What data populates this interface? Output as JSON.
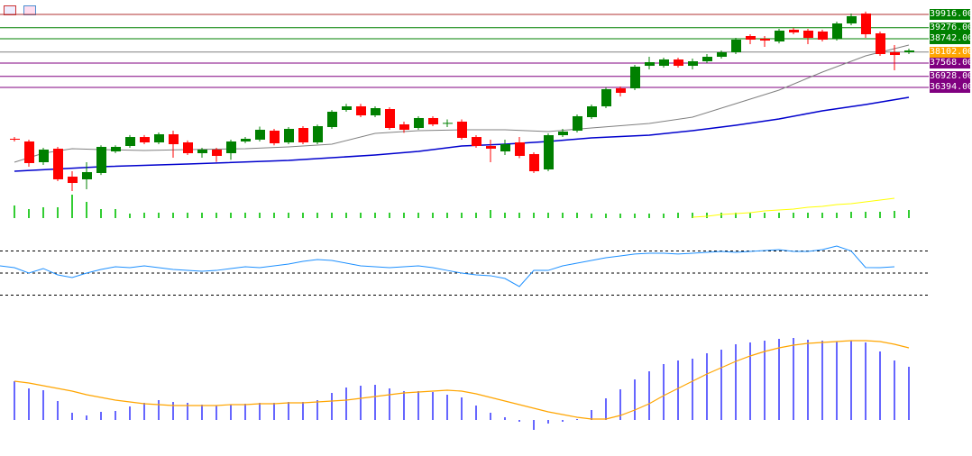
{
  "toolbar": {
    "icons": [
      "indicator-list-icon",
      "template-icon"
    ]
  },
  "price_levels": [
    {
      "label": "39916.00",
      "color": "#008000",
      "line": "#b03030"
    },
    {
      "label": "39276.00",
      "color": "#008000",
      "line": "#008000"
    },
    {
      "label": "38742.00",
      "color": "#008000",
      "line": "#008000"
    },
    {
      "label": "38102.00",
      "color": "#ffa500",
      "line": "#808080"
    },
    {
      "label": "37568.00",
      "color": "#800080",
      "line": "#800080"
    },
    {
      "label": "36928.00",
      "color": "#800080",
      "line": "#800080"
    },
    {
      "label": "36394.00",
      "color": "#800080",
      "line": "#800080"
    }
  ],
  "chart_data": [
    {
      "type": "candlestick",
      "title": "",
      "colors": {
        "up": "#008000",
        "down": "#ff0000",
        "ma_fast": "#808080",
        "ma_slow": "#0000cd"
      },
      "candles": [
        [
          33913,
          34000,
          33780,
          33870
        ],
        [
          33783,
          33870,
          32565,
          32739
        ],
        [
          32782,
          33480,
          32650,
          33391
        ],
        [
          33434,
          33520,
          31870,
          31956
        ],
        [
          32086,
          32347,
          31390,
          31781
        ],
        [
          31956,
          32782,
          31477,
          32304
        ],
        [
          32260,
          33600,
          32170,
          33522
        ],
        [
          33304,
          33600,
          33220,
          33522
        ],
        [
          33565,
          34090,
          33480,
          33999
        ],
        [
          33999,
          34090,
          33650,
          33739
        ],
        [
          33739,
          34220,
          33650,
          34131
        ],
        [
          34131,
          34304,
          32999,
          33652
        ],
        [
          33739,
          33830,
          33130,
          33217
        ],
        [
          33217,
          33480,
          33000,
          33391
        ],
        [
          33391,
          33480,
          32800,
          33087
        ],
        [
          33217,
          33870,
          32900,
          33783
        ],
        [
          33783,
          34000,
          33700,
          33913
        ],
        [
          33870,
          34500,
          33780,
          34348
        ],
        [
          34304,
          34391,
          33600,
          33696
        ],
        [
          33739,
          34478,
          33650,
          34391
        ],
        [
          34435,
          34522,
          33650,
          33739
        ],
        [
          33739,
          34600,
          33650,
          34522
        ],
        [
          34478,
          35300,
          34391,
          35218
        ],
        [
          35305,
          35600,
          35218,
          35479
        ],
        [
          35479,
          35600,
          34957,
          35044
        ],
        [
          35044,
          35479,
          34957,
          35392
        ],
        [
          35348,
          35435,
          34348,
          34435
        ],
        [
          34609,
          34740,
          34200,
          34348
        ],
        [
          34435,
          35000,
          34348,
          34914
        ],
        [
          34914,
          35000,
          34520,
          34609
        ],
        [
          34652,
          34850,
          34480,
          34680
        ],
        [
          34740,
          34850,
          33870,
          33957
        ],
        [
          33999,
          34087,
          33478,
          33565
        ],
        [
          33565,
          33870,
          32782,
          33435
        ],
        [
          33304,
          33870,
          33130,
          33652
        ],
        [
          33739,
          34000,
          32980,
          33087
        ],
        [
          33174,
          33260,
          32260,
          32347
        ],
        [
          32434,
          34174,
          32347,
          34087
        ],
        [
          34087,
          34391,
          34000,
          34261
        ],
        [
          34304,
          35088,
          34217,
          35001
        ],
        [
          34957,
          35566,
          34870,
          35479
        ],
        [
          35479,
          36393,
          35392,
          36306
        ],
        [
          36349,
          36436,
          35957,
          36131
        ],
        [
          36349,
          37480,
          36262,
          37393
        ],
        [
          37436,
          37871,
          37262,
          37610
        ],
        [
          37436,
          37828,
          37349,
          37741
        ],
        [
          37741,
          37828,
          37349,
          37436
        ],
        [
          37436,
          37784,
          37262,
          37654
        ],
        [
          37654,
          38002,
          37567,
          37871
        ],
        [
          37871,
          38176,
          37784,
          38089
        ],
        [
          38089,
          38785,
          38002,
          38698
        ],
        [
          38872,
          38959,
          38480,
          38698
        ],
        [
          38742,
          38870,
          38350,
          38654
        ],
        [
          38611,
          39220,
          38520,
          39133
        ],
        [
          39177,
          39264,
          38959,
          39046
        ],
        [
          39133,
          39220,
          38480,
          38785
        ],
        [
          39090,
          39177,
          38611,
          38698
        ],
        [
          38742,
          39568,
          38655,
          39481
        ],
        [
          39481,
          39960,
          39394,
          39829
        ],
        [
          39960,
          40050,
          38785,
          38959
        ],
        [
          39003,
          39090,
          37915,
          38002
        ],
        [
          38089,
          38437,
          37219,
          37958
        ],
        [
          38089,
          38263,
          38002,
          38176
        ]
      ],
      "ma_fast": [
        [
          0,
          32782
        ],
        [
          2,
          33217
        ],
        [
          4,
          33434
        ],
        [
          6,
          33391
        ],
        [
          9,
          33348
        ],
        [
          12,
          33391
        ],
        [
          16,
          33434
        ],
        [
          19,
          33522
        ],
        [
          22,
          33652
        ],
        [
          25,
          34174
        ],
        [
          28,
          34304
        ],
        [
          31,
          34348
        ],
        [
          34,
          34348
        ],
        [
          37,
          34261
        ],
        [
          40,
          34435
        ],
        [
          44,
          34652
        ],
        [
          47,
          34957
        ],
        [
          50,
          35610
        ],
        [
          53,
          36262
        ],
        [
          56,
          37132
        ],
        [
          59,
          37915
        ],
        [
          61,
          38263
        ],
        [
          62,
          38437
        ]
      ],
      "ma_slow": [
        [
          0,
          32347
        ],
        [
          6,
          32565
        ],
        [
          12,
          32695
        ],
        [
          19,
          32869
        ],
        [
          25,
          33130
        ],
        [
          28,
          33304
        ],
        [
          31,
          33565
        ],
        [
          34,
          33652
        ],
        [
          37,
          33783
        ],
        [
          40,
          33957
        ],
        [
          44,
          34087
        ],
        [
          47,
          34304
        ],
        [
          50,
          34565
        ],
        [
          53,
          34870
        ],
        [
          56,
          35262
        ],
        [
          59,
          35566
        ],
        [
          62,
          35914
        ]
      ]
    },
    {
      "type": "bar",
      "title": "",
      "color": "#32cd32",
      "values": [
        14,
        10,
        12,
        12,
        26,
        18,
        10,
        10,
        5,
        6,
        6,
        6,
        6,
        6,
        6,
        6,
        6,
        6,
        6,
        6,
        6,
        6,
        6,
        6,
        6,
        6,
        6,
        6,
        6,
        6,
        6,
        6,
        6,
        9,
        6,
        6,
        6,
        6,
        6,
        6,
        5,
        5,
        5,
        5,
        5,
        5,
        6,
        6,
        6,
        6,
        6,
        6,
        6,
        6,
        6,
        6,
        6,
        6,
        7,
        7,
        7,
        8,
        9
      ],
      "ma": {
        "color": "#ffff00",
        "start": 48,
        "values": [
          1,
          2,
          4,
          5,
          6,
          8,
          9,
          10,
          12,
          13,
          15,
          16,
          18,
          20,
          22
        ]
      }
    },
    {
      "type": "line",
      "title": "",
      "color": "#1e90ff",
      "levels": [
        70,
        50,
        30
      ],
      "ylim": [
        30,
        70
      ],
      "values": [
        56.5,
        54.9,
        50,
        54.1,
        48.4,
        45.9,
        50,
        53.3,
        55.7,
        54.9,
        56.5,
        54.9,
        53.3,
        52.4,
        51.6,
        52.4,
        54.1,
        55.7,
        54.9,
        56.5,
        58.2,
        60.6,
        62.2,
        61.4,
        59,
        56.5,
        55.7,
        54.9,
        55.7,
        56.5,
        54.9,
        52.4,
        50,
        48.4,
        47.6,
        45.1,
        37.8,
        52.4,
        52.4,
        56.5,
        59,
        61.4,
        63.9,
        65.5,
        67.2,
        68,
        68,
        67.2,
        68,
        68.8,
        69.6,
        68.8,
        69.6,
        70.4,
        71.2,
        69.6,
        69.6,
        71.2,
        74.5,
        70,
        55,
        54.9,
        55.7
      ]
    },
    {
      "type": "bar",
      "title": "",
      "color": "#0000ff",
      "signal_color": "#ffa500",
      "values": [
        43,
        35,
        33,
        21,
        8,
        5,
        9,
        10,
        15,
        19,
        22,
        20,
        19,
        17,
        16,
        17,
        18,
        19,
        19,
        20,
        20,
        22,
        30,
        36,
        38,
        39,
        35,
        32,
        32,
        31,
        28,
        25,
        16,
        8,
        3,
        -2,
        -11,
        -4,
        -2,
        1,
        11,
        24,
        34,
        45,
        54,
        62,
        66,
        68,
        74,
        78,
        84,
        86,
        88,
        90,
        91,
        89,
        88,
        87,
        88,
        86,
        76,
        66,
        59
      ],
      "signal": [
        43,
        41,
        38,
        35,
        32,
        28,
        25,
        22,
        20,
        18,
        17,
        16,
        16,
        16,
        16,
        17,
        17,
        18,
        18,
        19,
        19,
        20,
        21,
        22,
        24,
        26,
        28,
        30,
        31,
        32,
        33,
        32,
        29,
        25,
        21,
        17,
        13,
        9,
        6,
        3,
        1,
        1,
        5,
        11,
        18,
        27,
        35,
        43,
        51,
        58,
        65,
        71,
        76,
        80,
        83,
        85,
        86,
        87,
        88,
        88,
        87,
        84,
        80
      ]
    }
  ]
}
